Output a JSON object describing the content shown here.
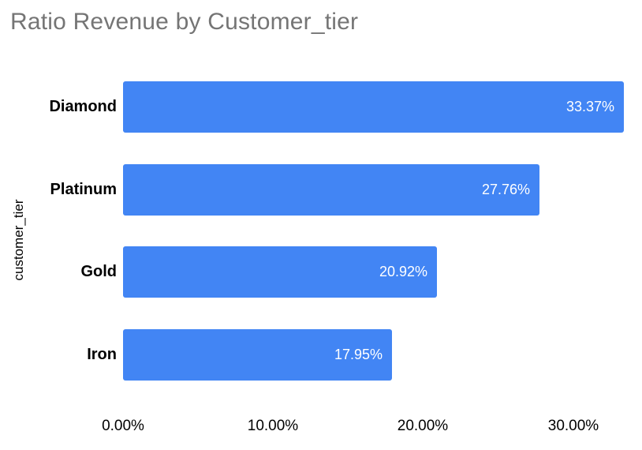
{
  "chart_data": {
    "type": "bar",
    "orientation": "horizontal",
    "title": "Ratio Revenue by Customer_tier",
    "categories": [
      "Diamond",
      "Platinum",
      "Gold",
      "Iron"
    ],
    "values": [
      33.37,
      27.76,
      20.92,
      17.95
    ],
    "value_labels": [
      "33.37%",
      "27.76%",
      "20.92%",
      "17.95%"
    ],
    "xlabel": "",
    "ylabel": "customer_tier",
    "x_ticks": [
      {
        "label": "0.00%",
        "value": 0
      },
      {
        "label": "10.00%",
        "value": 10
      },
      {
        "label": "20.00%",
        "value": 20
      },
      {
        "label": "30.00%",
        "value": 30
      }
    ],
    "xlim": [
      0,
      34.6
    ],
    "grid": false,
    "legend": "none",
    "colors": {
      "bar": "#4285F4",
      "title": "#757575",
      "category_label": "#000000",
      "value_label": "#FFFFFF",
      "tick_label": "#000000",
      "y_axis_title": "#000000",
      "background": "#FFFFFF"
    }
  }
}
